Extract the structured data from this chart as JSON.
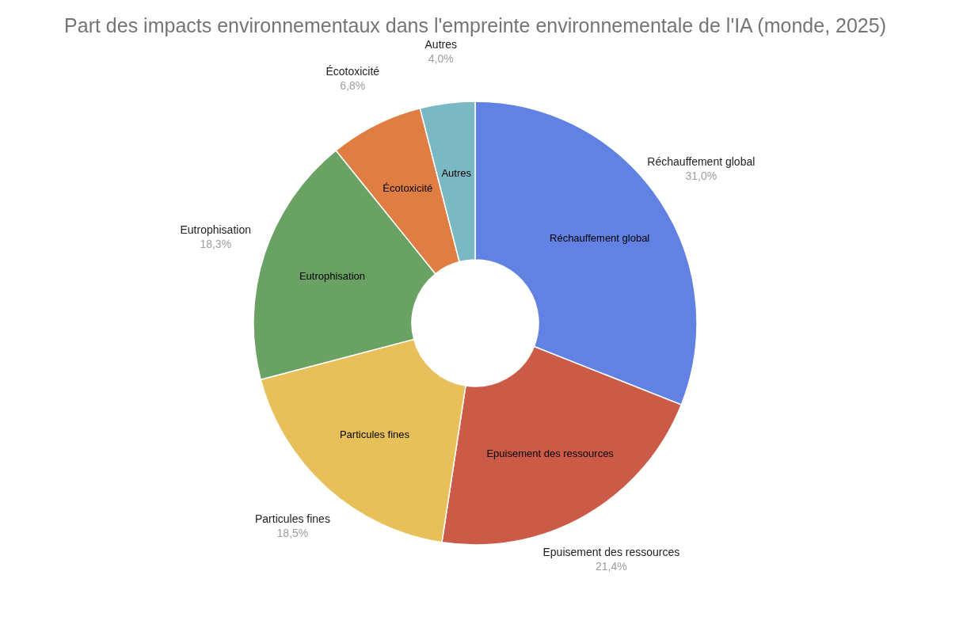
{
  "chart_data": {
    "type": "donut",
    "title": "Part des impacts environnementaux dans l'empreinte environnementale de l'IA (monde, 2025)",
    "categories": [
      "Réchauffement global",
      "Epuisement des ressources",
      "Particules fines",
      "Eutrophisation",
      "Écotoxicité",
      "Autres"
    ],
    "values": [
      31.0,
      21.4,
      18.5,
      18.3,
      6.8,
      4.0
    ],
    "colors": [
      "#6282e3",
      "#cb5b47",
      "#e8c05a",
      "#6aa263",
      "#df7d43",
      "#7ab9c4"
    ],
    "value_labels": [
      "31,0%",
      "21,4%",
      "18,5%",
      "18,3%",
      "6,8%",
      "4,0%"
    ]
  }
}
